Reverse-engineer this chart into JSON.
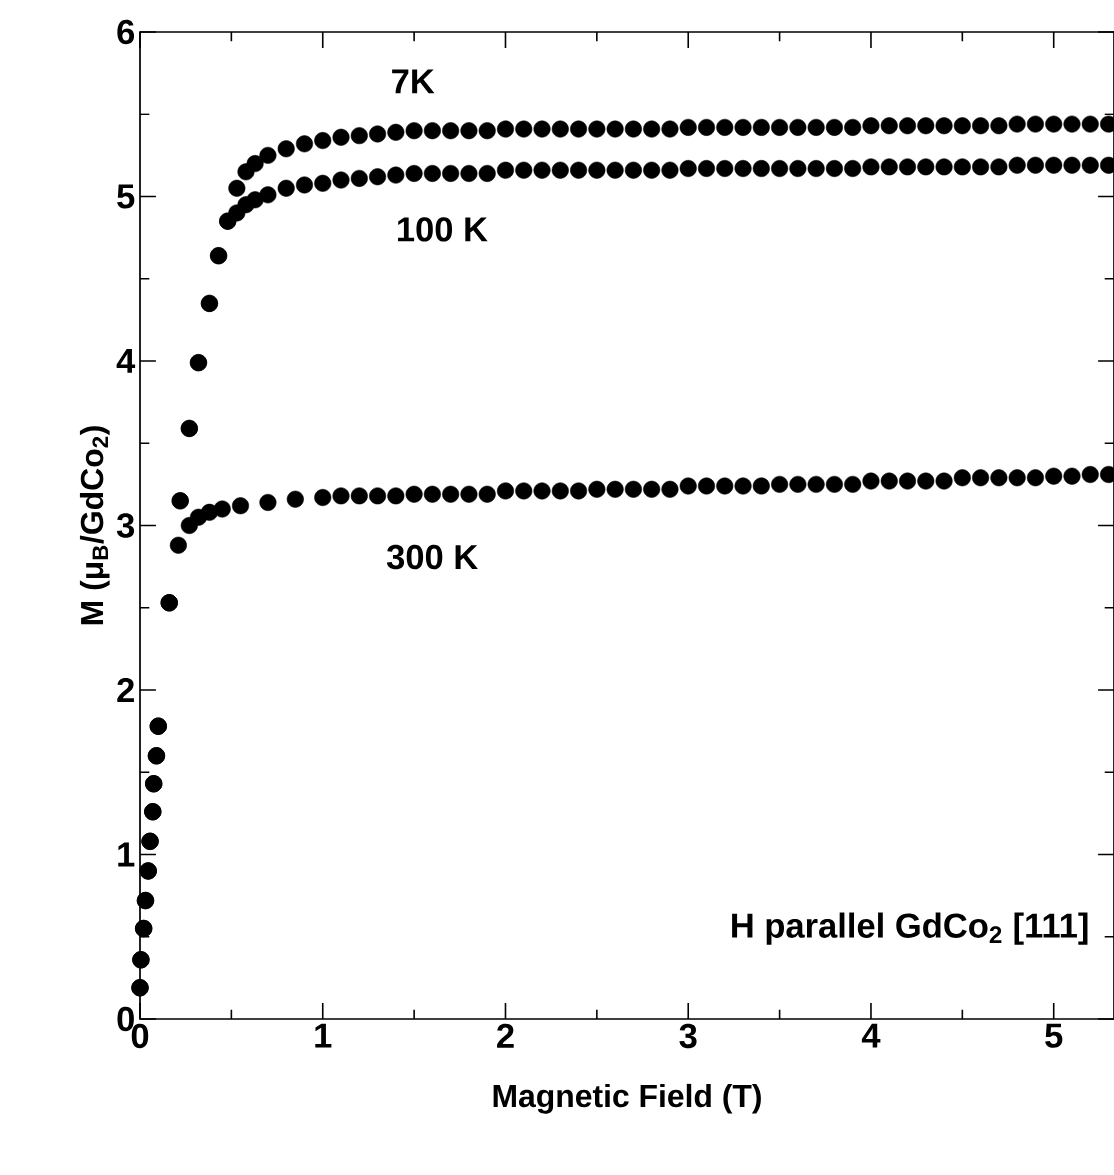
{
  "chart_data": {
    "type": "scatter",
    "xlabel": "Magnetic Field (T)",
    "ylabel": "M (μ$_{B}$/GdCo$_{2}$)",
    "xlim": [
      0,
      5.33
    ],
    "ylim": [
      0,
      6
    ],
    "xticks": [
      0,
      1,
      2,
      3,
      4,
      5
    ],
    "yticks": [
      0,
      1,
      2,
      3,
      4,
      5,
      6
    ],
    "marker": "circle",
    "series": [
      {
        "color": "#000000",
        "x": [
          0,
          0.005,
          0.02,
          0.03,
          0.045,
          0.055,
          0.07,
          0.075,
          0.09,
          0.1,
          0.16,
          0.22,
          0.27,
          0.32,
          0.38,
          0.43,
          0.48,
          0.53,
          0.58,
          0.63,
          0.7,
          0.8,
          0.9,
          1.0,
          1.1,
          1.2,
          1.3,
          1.4,
          1.5,
          1.6,
          1.7,
          1.8,
          1.9,
          2.0,
          2.1,
          2.2,
          2.3,
          2.4,
          2.5,
          2.6,
          2.7,
          2.8,
          2.9,
          3.0,
          3.1,
          3.2,
          3.3,
          3.4,
          3.5,
          3.6,
          3.7,
          3.8,
          3.9,
          4.0,
          4.1,
          4.2,
          4.3,
          4.4,
          4.5,
          4.6,
          4.7,
          4.8,
          4.9,
          5.0,
          5.1,
          5.2,
          5.3
        ],
        "values": [
          0.19,
          0.36,
          0.55,
          0.72,
          0.9,
          1.08,
          1.26,
          1.43,
          1.6,
          1.78,
          2.53,
          3.15,
          3.59,
          3.99,
          4.35,
          4.64,
          4.85,
          5.05,
          5.15,
          5.2,
          5.25,
          5.29,
          5.32,
          5.34,
          5.36,
          5.37,
          5.38,
          5.39,
          5.4,
          5.4,
          5.4,
          5.4,
          5.4,
          5.41,
          5.41,
          5.41,
          5.41,
          5.41,
          5.41,
          5.41,
          5.41,
          5.41,
          5.41,
          5.42,
          5.42,
          5.42,
          5.42,
          5.42,
          5.42,
          5.42,
          5.42,
          5.42,
          5.42,
          5.43,
          5.43,
          5.43,
          5.43,
          5.43,
          5.43,
          5.43,
          5.43,
          5.44,
          5.44,
          5.44,
          5.44,
          5.44,
          5.44
        ]
      },
      {
        "color": "#000000",
        "x": [
          0,
          0.005,
          0.02,
          0.03,
          0.045,
          0.055,
          0.07,
          0.075,
          0.09,
          0.1,
          0.16,
          0.22,
          0.27,
          0.32,
          0.38,
          0.43,
          0.48,
          0.53,
          0.58,
          0.63,
          0.7,
          0.8,
          0.9,
          1.0,
          1.1,
          1.2,
          1.3,
          1.4,
          1.5,
          1.6,
          1.7,
          1.8,
          1.9,
          2.0,
          2.1,
          2.2,
          2.3,
          2.4,
          2.5,
          2.6,
          2.7,
          2.8,
          2.9,
          3.0,
          3.1,
          3.2,
          3.3,
          3.4,
          3.5,
          3.6,
          3.7,
          3.8,
          3.9,
          4.0,
          4.1,
          4.2,
          4.3,
          4.4,
          4.5,
          4.6,
          4.7,
          4.8,
          4.9,
          5.0,
          5.1,
          5.2,
          5.3
        ],
        "values": [
          0.19,
          0.36,
          0.55,
          0.72,
          0.9,
          1.08,
          1.26,
          1.43,
          1.6,
          1.78,
          2.53,
          3.15,
          3.59,
          3.99,
          4.35,
          4.64,
          4.85,
          4.9,
          4.95,
          4.98,
          5.01,
          5.05,
          5.07,
          5.08,
          5.1,
          5.11,
          5.12,
          5.13,
          5.14,
          5.14,
          5.14,
          5.14,
          5.14,
          5.16,
          5.16,
          5.16,
          5.16,
          5.16,
          5.16,
          5.16,
          5.16,
          5.16,
          5.16,
          5.17,
          5.17,
          5.17,
          5.17,
          5.17,
          5.17,
          5.17,
          5.17,
          5.17,
          5.17,
          5.18,
          5.18,
          5.18,
          5.18,
          5.18,
          5.18,
          5.18,
          5.18,
          5.19,
          5.19,
          5.19,
          5.19,
          5.19,
          5.19
        ]
      },
      {
        "color": "#000000",
        "x": [
          0,
          0.005,
          0.02,
          0.03,
          0.045,
          0.055,
          0.07,
          0.075,
          0.09,
          0.1,
          0.16,
          0.21,
          0.27,
          0.32,
          0.38,
          0.45,
          0.55,
          0.7,
          0.85,
          1.0,
          1.1,
          1.2,
          1.3,
          1.4,
          1.5,
          1.6,
          1.7,
          1.8,
          1.9,
          2.0,
          2.1,
          2.2,
          2.3,
          2.4,
          2.5,
          2.6,
          2.7,
          2.8,
          2.9,
          3.0,
          3.1,
          3.2,
          3.3,
          3.4,
          3.5,
          3.6,
          3.7,
          3.8,
          3.9,
          4.0,
          4.1,
          4.2,
          4.3,
          4.4,
          4.5,
          4.6,
          4.7,
          4.8,
          4.9,
          5.0,
          5.1,
          5.2,
          5.3
        ],
        "values": [
          0.19,
          0.36,
          0.55,
          0.72,
          0.9,
          1.08,
          1.26,
          1.43,
          1.6,
          1.78,
          2.53,
          2.88,
          3.0,
          3.05,
          3.08,
          3.1,
          3.12,
          3.14,
          3.16,
          3.17,
          3.18,
          3.18,
          3.18,
          3.18,
          3.19,
          3.19,
          3.19,
          3.19,
          3.19,
          3.21,
          3.21,
          3.21,
          3.21,
          3.21,
          3.22,
          3.22,
          3.22,
          3.22,
          3.22,
          3.24,
          3.24,
          3.24,
          3.24,
          3.24,
          3.25,
          3.25,
          3.25,
          3.25,
          3.25,
          3.27,
          3.27,
          3.27,
          3.27,
          3.27,
          3.29,
          3.29,
          3.29,
          3.29,
          3.29,
          3.3,
          3.3,
          3.31,
          3.31
        ]
      }
    ],
    "annotations": [
      "7K",
      "100 K",
      "300 K",
      "H parallel GdCo$_{2}$ [111]"
    ]
  }
}
